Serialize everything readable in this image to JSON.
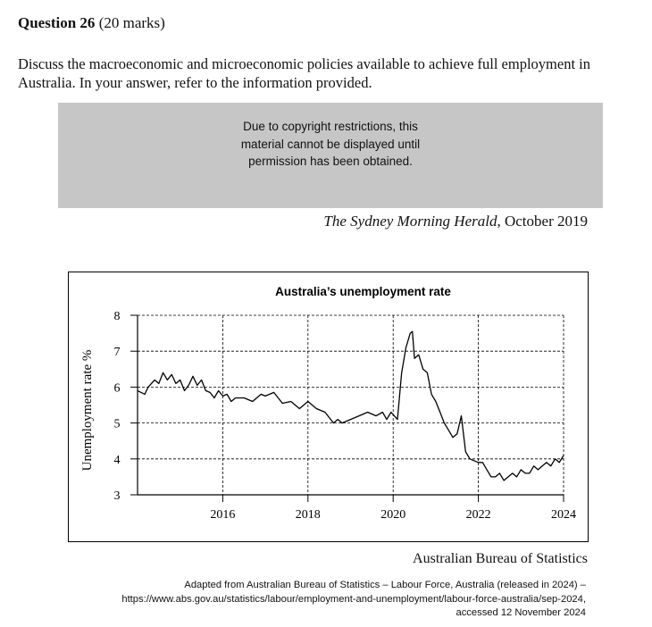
{
  "question": {
    "number_label": "Question 26",
    "marks": "(20 marks)",
    "body": "Discuss the macroeconomic and microeconomic policies available to achieve full employment in Australia. In your answer, refer to the information provided."
  },
  "copyright_notice": "Due to copyright restrictions, this\nmaterial cannot be displayed until\npermission has been obtained.",
  "source_1": {
    "publication": "The Sydney Morning Herald",
    "date": ", October 2019"
  },
  "chart_data": {
    "type": "line",
    "title": "Australia’s unemployment rate",
    "ylabel": "Unemployment rate %",
    "xlabel": "",
    "xlim": [
      2014,
      2024
    ],
    "ylim": [
      3,
      8
    ],
    "x_ticks": [
      "2016",
      "2018",
      "2020",
      "2022",
      "2024"
    ],
    "y_ticks": [
      "3",
      "4",
      "5",
      "6",
      "7",
      "8"
    ],
    "grid": true,
    "series": [
      {
        "x": [
          2014.0,
          2014.17,
          2014.25,
          2014.4,
          2014.5,
          2014.6,
          2014.7,
          2014.8,
          2014.9,
          2015.0,
          2015.1,
          2015.2,
          2015.3,
          2015.4,
          2015.5,
          2015.6,
          2015.7,
          2015.8,
          2015.9,
          2016.0,
          2016.1,
          2016.2,
          2016.3,
          2016.5,
          2016.7,
          2016.9,
          2017.0,
          2017.2,
          2017.4,
          2017.6,
          2017.8,
          2018.0,
          2018.2,
          2018.4,
          2018.6,
          2018.7,
          2018.8,
          2019.0,
          2019.2,
          2019.4,
          2019.6,
          2019.75,
          2019.85,
          2019.95,
          2020.1,
          2020.2,
          2020.3,
          2020.4,
          2020.45,
          2020.5,
          2020.6,
          2020.7,
          2020.8,
          2020.9,
          2021.0,
          2021.1,
          2021.2,
          2021.3,
          2021.4,
          2021.5,
          2021.6,
          2021.7,
          2021.8,
          2021.9,
          2022.0,
          2022.1,
          2022.2,
          2022.3,
          2022.4,
          2022.5,
          2022.6,
          2022.7,
          2022.8,
          2022.9,
          2023.0,
          2023.1,
          2023.2,
          2023.3,
          2023.4,
          2023.5,
          2023.6,
          2023.7,
          2023.8,
          2023.9,
          2024.0
        ],
        "y": [
          5.9,
          5.8,
          6.0,
          6.2,
          6.1,
          6.4,
          6.2,
          6.35,
          6.1,
          6.2,
          5.9,
          6.05,
          6.3,
          6.05,
          6.2,
          5.9,
          5.85,
          5.7,
          5.9,
          5.75,
          5.8,
          5.6,
          5.7,
          5.7,
          5.6,
          5.8,
          5.75,
          5.85,
          5.55,
          5.6,
          5.4,
          5.6,
          5.4,
          5.3,
          5.0,
          5.1,
          5.0,
          5.1,
          5.2,
          5.3,
          5.2,
          5.3,
          5.1,
          5.3,
          5.1,
          6.4,
          7.1,
          7.5,
          7.55,
          6.8,
          6.9,
          6.5,
          6.4,
          5.8,
          5.6,
          5.3,
          5.0,
          4.8,
          4.6,
          4.7,
          5.2,
          4.2,
          4.0,
          3.95,
          3.9,
          3.9,
          3.7,
          3.5,
          3.5,
          3.6,
          3.4,
          3.5,
          3.6,
          3.5,
          3.7,
          3.6,
          3.6,
          3.8,
          3.7,
          3.8,
          3.9,
          3.8,
          4.0,
          3.9,
          4.1
        ]
      }
    ]
  },
  "source_2": "Australian Bureau of Statistics",
  "citation": {
    "line1": "Adapted from Australian Bureau of Statistics – Labour Force, Australia (released in 2024) –",
    "line2": "https://www.abs.gov.au/statistics/labour/employment-and-unemployment/labour-force-australia/sep-2024,",
    "line3": "accessed 12 November 2024"
  }
}
